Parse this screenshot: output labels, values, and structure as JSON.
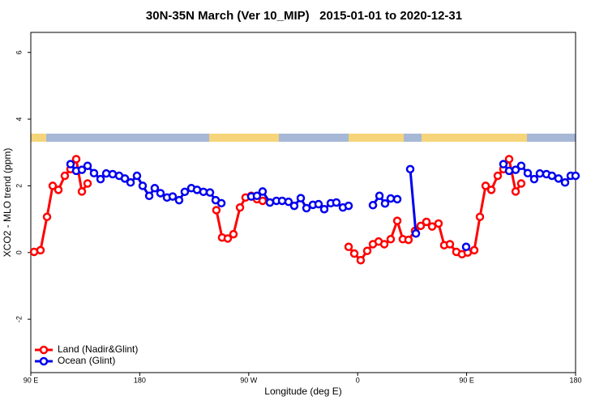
{
  "chart_data": {
    "type": "line",
    "title": "30N-35N March (Ver 10_MIP)   2015-01-01 to 2020-12-31",
    "x_label": "Longitude (deg E)",
    "y_label": "XCO2 - MLO trend (ppm)",
    "xlim": [
      90,
      540
    ],
    "xticks": [
      {
        "value": 90,
        "label": "90 E"
      },
      180,
      {
        "value": 270,
        "label": "90 W"
      },
      {
        "value": 360,
        "label": "0"
      },
      {
        "value": 450,
        "label": "90 E"
      },
      {
        "value": 540,
        "label": "180"
      }
    ],
    "ylim": [
      -3.6,
      6.6
    ],
    "yticks": [
      -2,
      0,
      2,
      4,
      6
    ],
    "legend": "bottom-left",
    "series": [
      {
        "name": "Land (Nadir&Glint)",
        "color": "#ff0000",
        "x": [
          92.7,
          98.0,
          103.4,
          108.1,
          112.8,
          118.1,
          122.8,
          127.5,
          132.2,
          136.9,
          190,
          243.3,
          248.0,
          252.7,
          257.4,
          262.8,
          267.4,
          272.1,
          276.8,
          281.5,
          320,
          352.5,
          357.2,
          362.5,
          367.9,
          372.6,
          377.3,
          382.0,
          387.3,
          392.7,
          397.3,
          402.0,
          407.4,
          412.1,
          416.8,
          421.5,
          426.8,
          431.5,
          436.2,
          441.5,
          446.2,
          450.9,
          456.3,
          461.0,
          465.7,
          470.4,
          475.7,
          480.4,
          485.1,
          490.5,
          495.1
        ],
        "values": [
          0.02,
          0.07,
          1.07,
          2.0,
          1.88,
          2.3,
          2.5,
          2.8,
          1.83,
          2.07,
          null,
          1.27,
          0.45,
          0.42,
          0.55,
          1.35,
          1.65,
          1.7,
          1.6,
          1.55,
          null,
          0.17,
          -0.03,
          -0.23,
          0.05,
          0.25,
          0.33,
          0.25,
          0.4,
          0.95,
          0.4,
          0.38,
          0.65,
          0.8,
          0.92,
          0.78,
          0.87,
          0.22,
          0.25,
          0.02,
          -0.05,
          0.0,
          0.07,
          1.07,
          2.0,
          1.88,
          2.3,
          2.5,
          2.8,
          1.83,
          2.07
        ]
      },
      {
        "name": "Ocean (Glint)",
        "color": "#0000ee",
        "x": [
          122.8,
          127.5,
          132.2,
          136.9,
          142.2,
          147.6,
          152.3,
          157.6,
          163.0,
          167.7,
          172.4,
          177.7,
          182.4,
          187.8,
          192.4,
          197.1,
          202.5,
          207.2,
          212.5,
          217.2,
          222.6,
          227.3,
          232.6,
          238.0,
          242.7,
          247.4,
          260,
          272.1,
          276.8,
          281.5,
          287.5,
          292.9,
          297.6,
          302.9,
          307.6,
          313.0,
          317.7,
          323.0,
          327.7,
          332.4,
          337.8,
          342.4,
          347.8,
          352.5,
          362,
          372.6,
          378.0,
          382.6,
          387.3,
          392.7,
          398,
          403.4,
          408.1,
          430,
          449.6,
          465,
          480.4,
          485.1,
          490.5,
          495.1,
          500.5,
          505.8,
          510.5,
          515.9,
          520.5,
          525.9,
          531.3,
          536.0,
          540.0
        ],
        "values": [
          2.65,
          2.45,
          2.48,
          2.6,
          2.38,
          2.2,
          2.37,
          2.35,
          2.3,
          2.22,
          2.1,
          2.3,
          2.0,
          1.7,
          1.93,
          1.78,
          1.65,
          1.68,
          1.57,
          1.82,
          1.93,
          1.88,
          1.82,
          1.8,
          1.57,
          1.48,
          null,
          1.68,
          1.7,
          1.83,
          1.5,
          1.55,
          1.55,
          1.52,
          1.4,
          1.63,
          1.33,
          1.43,
          1.45,
          1.3,
          1.48,
          1.5,
          1.35,
          1.4,
          null,
          1.42,
          1.7,
          1.47,
          1.62,
          1.6,
          null,
          2.5,
          0.57,
          null,
          0.17,
          null,
          2.65,
          2.45,
          2.48,
          2.6,
          2.38,
          2.2,
          2.37,
          2.35,
          2.3,
          2.22,
          2.1,
          2.3,
          2.3
        ]
      }
    ]
  }
}
